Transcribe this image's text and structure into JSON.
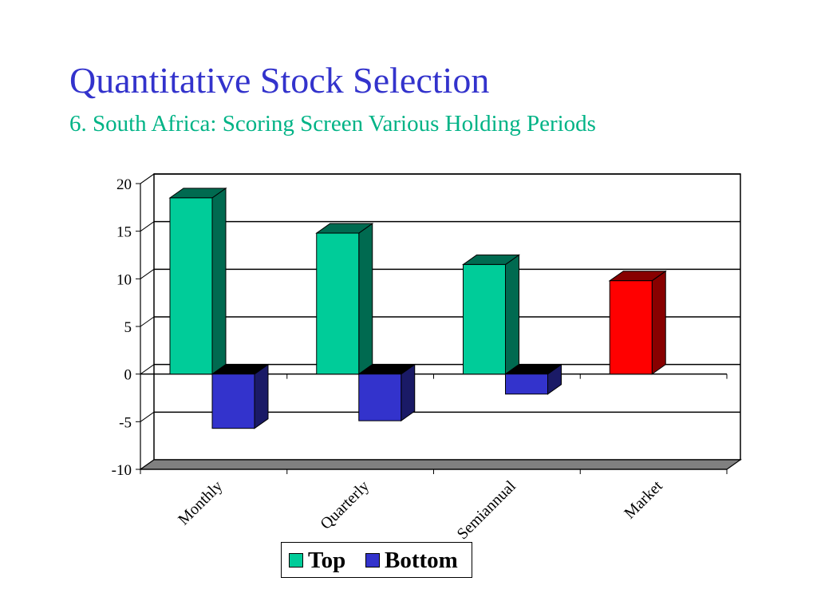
{
  "slide": {
    "title": "Quantitative Stock Selection",
    "subtitle": "6. South Africa: Scoring Screen Various Holding Periods"
  },
  "colors": {
    "title": "#3333cc",
    "subtitle": "#00b386",
    "top_front": "#00cc99",
    "top_side": "#006a50",
    "bottom_front": "#3333cc",
    "bottom_side": "#1a1a66",
    "market_front": "#ff0000",
    "market_side": "#880000",
    "floor": "#808080"
  },
  "chart_data": {
    "type": "bar",
    "style": "3d-clustered",
    "categories": [
      "Monthly",
      "Quarterly",
      "Semiannual",
      "Market"
    ],
    "series": [
      {
        "name": "Top",
        "values": [
          18.5,
          14.8,
          11.5,
          9.8
        ]
      },
      {
        "name": "Bottom",
        "values": [
          -5.7,
          -4.9,
          -2.1,
          null
        ]
      }
    ],
    "ylim": [
      -10,
      20
    ],
    "yticks": [
      "20",
      "15",
      "10",
      "5",
      "0",
      "-5",
      "-10"
    ],
    "grid": true,
    "legend": {
      "placement": "bottom",
      "entries": [
        "Top",
        "Bottom"
      ]
    }
  }
}
